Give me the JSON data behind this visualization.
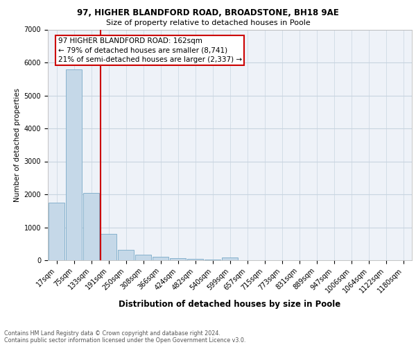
{
  "title1": "97, HIGHER BLANDFORD ROAD, BROADSTONE, BH18 9AE",
  "title2": "Size of property relative to detached houses in Poole",
  "xlabel": "Distribution of detached houses by size in Poole",
  "ylabel": "Number of detached properties",
  "footnote": "Contains HM Land Registry data © Crown copyright and database right 2024.\nContains public sector information licensed under the Open Government Licence v3.0.",
  "bin_labels": [
    "17sqm",
    "75sqm",
    "133sqm",
    "191sqm",
    "250sqm",
    "308sqm",
    "366sqm",
    "424sqm",
    "482sqm",
    "540sqm",
    "599sqm",
    "657sqm",
    "715sqm",
    "773sqm",
    "831sqm",
    "889sqm",
    "947sqm",
    "1006sqm",
    "1064sqm",
    "1122sqm",
    "1180sqm"
  ],
  "bar_values": [
    1750,
    5780,
    2050,
    800,
    310,
    175,
    110,
    70,
    50,
    30,
    80,
    0,
    0,
    0,
    0,
    0,
    0,
    0,
    0,
    0,
    0
  ],
  "bar_color": "#c5d8e8",
  "bar_edge_color": "#7aaac8",
  "property_line_x": 2.55,
  "property_line_color": "#cc0000",
  "annotation_text": "97 HIGHER BLANDFORD ROAD: 162sqm\n← 79% of detached houses are smaller (8,741)\n21% of semi-detached houses are larger (2,337) →",
  "annotation_box_color": "#ffffff",
  "annotation_box_edge": "#cc0000",
  "ylim": [
    0,
    7000
  ],
  "yticks": [
    0,
    1000,
    2000,
    3000,
    4000,
    5000,
    6000,
    7000
  ],
  "grid_color": "#c8d4e0",
  "background_color": "#eef2f8",
  "title1_fontsize": 8.5,
  "title2_fontsize": 8.0,
  "xlabel_fontsize": 8.5,
  "ylabel_fontsize": 7.5,
  "tick_fontsize": 7.0,
  "annot_fontsize": 7.5
}
